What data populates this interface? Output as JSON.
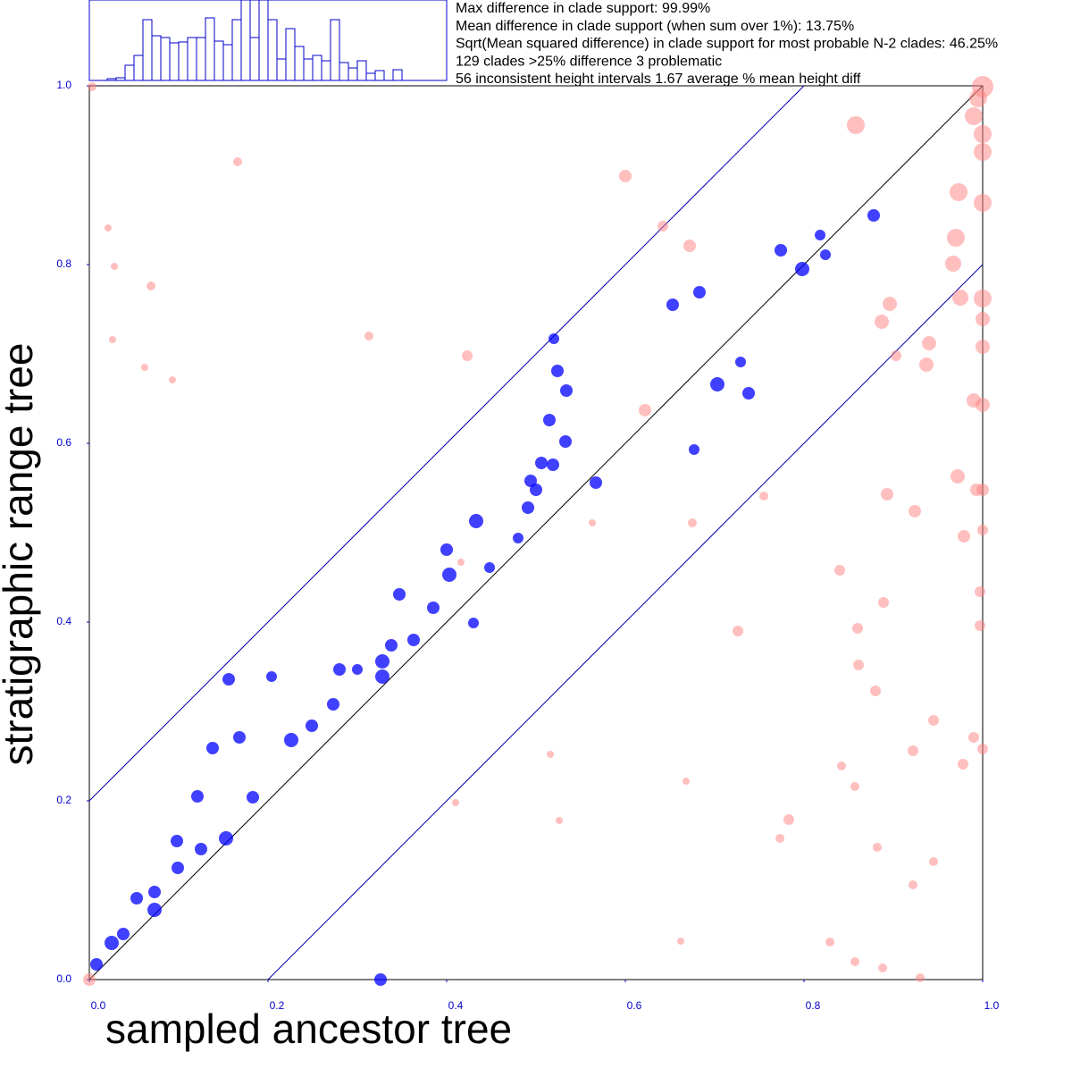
{
  "chart_data": [
    {
      "type": "scatter",
      "xlabel": "sampled ancestor tree",
      "ylabel": "stratigraphic range tree",
      "annotations": [
        "Max difference in clade support: 99.99%",
        "Mean difference in clade support (when sum over 1%): 13.75%",
        "Sqrt(Mean squared difference) in clade support for most probable N-2 clades: 46.25%",
        "129 clades >25% difference 3 problematic",
        "56 inconsistent height intervals 1.67 average % mean height diff"
      ],
      "xlim": [
        0,
        1
      ],
      "ylim": [
        0,
        1
      ],
      "xticks": [
        {
          "value": 0,
          "label": "0.0"
        },
        0.2,
        0.4,
        0.6,
        0.8,
        {
          "value": 1,
          "label": "1.0"
        }
      ],
      "yticks": [
        {
          "value": 0,
          "label": "0.0"
        },
        0.2,
        0.4,
        0.6,
        0.8,
        {
          "value": 1,
          "label": "1.0"
        }
      ],
      "reference_lines": [
        {
          "slope": 1,
          "intercept": 0,
          "color": "#000000"
        },
        {
          "slope": 1,
          "intercept": 0.2,
          "color": "#0000aa"
        },
        {
          "slope": 1,
          "intercept": -0.2,
          "color": "#0000aa"
        }
      ],
      "series": [
        {
          "color": "#0000ff",
          "x": [
            0.008,
            0.025,
            0.038,
            0.053,
            0.073,
            0.073,
            0.098,
            0.099,
            0.121,
            0.125,
            0.138,
            0.153,
            0.168,
            0.183,
            0.156,
            0.204,
            0.226,
            0.249,
            0.273,
            0.28,
            0.3,
            0.328,
            0.328,
            0.338,
            0.347,
            0.363,
            0.385,
            0.4,
            0.403,
            0.43,
            0.433,
            0.448,
            0.48,
            0.491,
            0.494,
            0.5,
            0.506,
            0.519,
            0.515,
            0.533,
            0.52,
            0.524,
            0.534,
            0.567,
            0.653,
            0.683,
            0.703,
            0.738,
            0.677,
            0.729,
            0.774,
            0.798,
            0.824,
            0.878,
            0.818,
            0.326
          ],
          "y": [
            0.017,
            0.041,
            0.051,
            0.091,
            0.078,
            0.098,
            0.155,
            0.125,
            0.205,
            0.146,
            0.259,
            0.158,
            0.271,
            0.204,
            0.336,
            0.339,
            0.268,
            0.284,
            0.308,
            0.347,
            0.347,
            0.339,
            0.356,
            0.374,
            0.431,
            0.38,
            0.416,
            0.481,
            0.453,
            0.399,
            0.513,
            0.461,
            0.494,
            0.528,
            0.558,
            0.548,
            0.578,
            0.576,
            0.626,
            0.602,
            0.717,
            0.681,
            0.659,
            0.556,
            0.755,
            0.769,
            0.666,
            0.656,
            0.593,
            0.691,
            0.816,
            0.795,
            0.811,
            0.855,
            0.833,
            0
          ],
          "sizes": [
            7,
            8,
            7,
            7,
            8,
            7,
            7,
            7,
            7,
            7,
            7,
            8,
            7,
            7,
            7,
            6,
            8,
            7,
            7,
            7,
            6,
            8,
            8,
            7,
            7,
            7,
            7,
            7,
            8,
            6,
            8,
            6,
            6,
            7,
            7,
            7,
            7,
            7,
            7,
            7,
            6,
            7,
            7,
            7,
            7,
            7,
            8,
            7,
            6,
            6,
            7,
            8,
            6,
            7,
            6,
            7
          ]
        },
        {
          "color": "#ff7f7f",
          "x": [
            0.003,
            1.0,
            0.995,
            0.99,
            0.858,
            1.0,
            1.0,
            0.166,
            0.6,
            0.973,
            1.0,
            0.642,
            0.97,
            0.672,
            0.967,
            0.975,
            1.0,
            0.896,
            0.887,
            1.0,
            0.313,
            0.94,
            1.0,
            0.937,
            0.903,
            0.423,
            0.99,
            1.0,
            0.622,
            0.972,
            1.0,
            0.993,
            0.893,
            0.924,
            0.979,
            1.0,
            0.069,
            0.028,
            0.021,
            0.026,
            0.093,
            0.062,
            0.84,
            0.889,
            0.997,
            0.86,
            0.726,
            0.997,
            0.861,
            0.88,
            0.945,
            0.99,
            0.922,
            1.0,
            0.978,
            0.842,
            0.857,
            0.783,
            0.773,
            0.882,
            0.945,
            0.922,
            0.829,
            0.857,
            0.888,
            0.93,
            0,
            0.416,
            0.755,
            0.563,
            0.675,
            0.516,
            0.526,
            0.41,
            0.668,
            0.662
          ],
          "y": [
            0.999,
            0.999,
            0.986,
            0.966,
            0.956,
            0.946,
            0.926,
            0.915,
            0.899,
            0.881,
            0.869,
            0.843,
            0.83,
            0.821,
            0.801,
            0.763,
            0.762,
            0.756,
            0.736,
            0.739,
            0.72,
            0.712,
            0.708,
            0.688,
            0.698,
            0.698,
            0.648,
            0.643,
            0.637,
            0.563,
            0.548,
            0.548,
            0.543,
            0.524,
            0.496,
            0.503,
            0.776,
            0.798,
            0.841,
            0.716,
            0.671,
            0.685,
            0.458,
            0.422,
            0.434,
            0.393,
            0.39,
            0.396,
            0.352,
            0.323,
            0.29,
            0.271,
            0.256,
            0.258,
            0.241,
            0.239,
            0.216,
            0.179,
            0.158,
            0.148,
            0.132,
            0.106,
            0.042,
            0.02,
            0.013,
            0.002,
            0,
            0.467,
            0.541,
            0.511,
            0.511,
            0.252,
            0.178,
            0.198,
            0.222,
            0.043
          ],
          "sizes": [
            5,
            12,
            10,
            10,
            10,
            10,
            10,
            5,
            7,
            10,
            10,
            6,
            10,
            7,
            9,
            9,
            10,
            8,
            8,
            8,
            5,
            8,
            8,
            8,
            6,
            6,
            8,
            8,
            7,
            8,
            7,
            7,
            7,
            7,
            7,
            6,
            5,
            4,
            4,
            4,
            4,
            4,
            6,
            6,
            6,
            6,
            6,
            6,
            6,
            6,
            6,
            6,
            6,
            6,
            6,
            5,
            5,
            6,
            5,
            5,
            5,
            5,
            5,
            5,
            5,
            5,
            7,
            4,
            5,
            4,
            5,
            4,
            4,
            4,
            4,
            4
          ]
        }
      ]
    },
    {
      "type": "histogram",
      "color": "#0000cc",
      "xlim": [
        0,
        1
      ],
      "ylim": [
        0,
        90
      ],
      "bins": [
        0.05,
        0.075,
        0.1,
        0.125,
        0.15,
        0.175,
        0.2,
        0.225,
        0.25,
        0.275,
        0.3,
        0.325,
        0.35,
        0.375,
        0.4,
        0.425,
        0.45,
        0.475,
        0.5,
        0.525,
        0.55,
        0.575,
        0.6,
        0.625,
        0.65,
        0.675,
        0.7,
        0.725,
        0.75,
        0.775,
        0.8,
        0.825,
        0.85,
        0.875
      ],
      "counts": [
        2,
        3,
        17,
        28,
        68,
        50,
        48,
        42,
        43,
        48,
        48,
        70,
        44,
        40,
        68,
        90,
        48,
        90,
        68,
        24,
        58,
        38,
        24,
        28,
        22,
        68,
        20,
        14,
        22,
        8,
        11,
        0,
        12
      ]
    }
  ]
}
